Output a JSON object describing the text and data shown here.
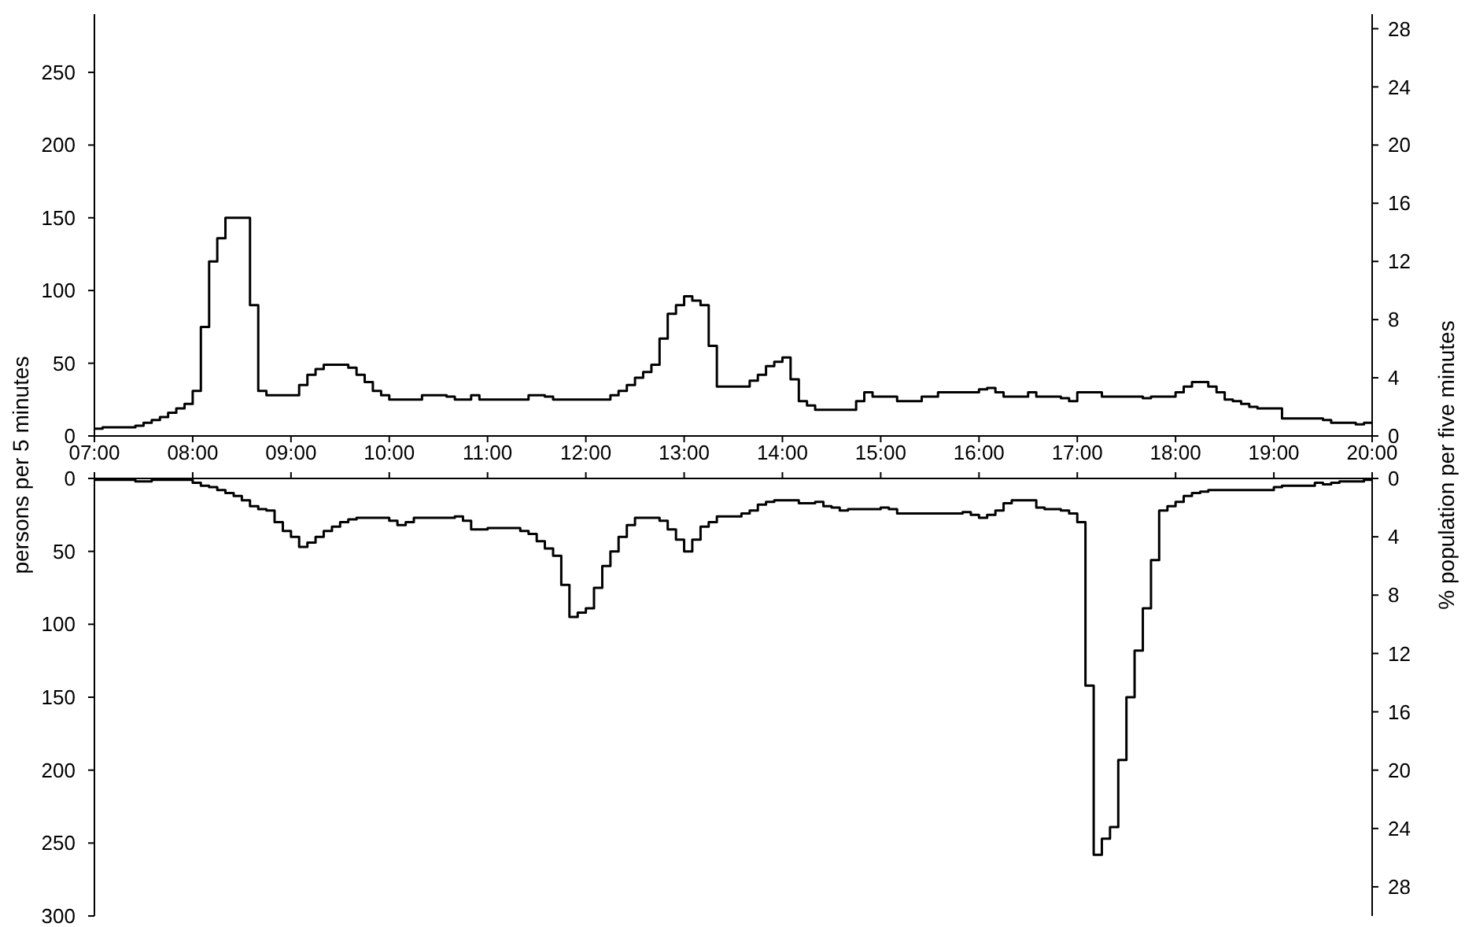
{
  "chart_data": [
    {
      "type": "step",
      "ylabel": "persons per 5 minutes",
      "y2label": "% population per five minutes",
      "xlim": [
        7,
        20
      ],
      "xticks": [
        {
          "value": 7,
          "label": "07:00"
        },
        {
          "value": 8,
          "label": "08:00"
        },
        {
          "value": 9,
          "label": "09:00"
        },
        {
          "value": 10,
          "label": "10:00"
        },
        {
          "value": 11,
          "label": "11:00"
        },
        {
          "value": 12,
          "label": "12:00"
        },
        {
          "value": 13,
          "label": "13:00"
        },
        {
          "value": 14,
          "label": "14:00"
        },
        {
          "value": 15,
          "label": "15:00"
        },
        {
          "value": 16,
          "label": "16:00"
        },
        {
          "value": 17,
          "label": "17:00"
        },
        {
          "value": 18,
          "label": "18:00"
        },
        {
          "value": 19,
          "label": "19:00"
        },
        {
          "value": 20,
          "label": "20:00"
        }
      ],
      "ylim": [
        0,
        290
      ],
      "yticks": [
        0,
        50,
        100,
        150,
        200,
        250
      ],
      "y2lim": [
        0,
        29
      ],
      "y2ticks": [
        0,
        4,
        8,
        12,
        16,
        20,
        24,
        28
      ],
      "series": [
        {
          "color": "#000000",
          "x": [
            7,
            7.083,
            7.417,
            7.5,
            7.583,
            7.667,
            7.75,
            7.833,
            7.917,
            8,
            8.083,
            8.167,
            8.25,
            8.333,
            8.583,
            8.667,
            8.75,
            9.083,
            9.167,
            9.25,
            9.333,
            9.583,
            9.667,
            9.75,
            9.833,
            9.917,
            10,
            10.333,
            10.583,
            10.667,
            10.833,
            10.917,
            11.417,
            11.583,
            11.667,
            12.25,
            12.333,
            12.417,
            12.5,
            12.583,
            12.667,
            12.75,
            12.833,
            12.917,
            13,
            13.083,
            13.167,
            13.25,
            13.333,
            13.667,
            13.75,
            13.833,
            13.917,
            14,
            14.083,
            14.167,
            14.25,
            14.333,
            14.75,
            14.833,
            14.917,
            15.167,
            15.417,
            15.583,
            16,
            16.083,
            16.167,
            16.25,
            16.5,
            16.583,
            16.833,
            16.917,
            17,
            17.25,
            17.667,
            17.75,
            18,
            18.083,
            18.167,
            18.333,
            18.417,
            18.5,
            18.583,
            18.667,
            18.75,
            18.833,
            19.083,
            19.5,
            19.583,
            19.833,
            19.917,
            20
          ],
          "values": [
            5,
            6,
            7,
            9,
            11,
            13,
            16,
            19,
            22,
            31,
            75,
            120,
            136,
            150,
            90,
            31,
            28,
            35,
            42,
            46,
            49,
            47,
            42,
            37,
            31,
            28,
            25,
            28,
            27,
            25,
            28,
            25,
            28,
            27,
            25,
            28,
            31,
            35,
            40,
            44,
            49,
            67,
            84,
            90,
            96,
            93,
            90,
            62,
            34,
            38,
            42,
            48,
            51,
            54,
            39,
            24,
            21,
            18,
            24,
            30,
            27,
            24,
            27,
            30,
            32,
            33,
            30,
            27,
            30,
            27,
            26,
            24,
            30,
            27,
            26,
            27,
            30,
            34,
            37,
            34,
            30,
            25,
            24,
            22,
            20,
            19,
            12,
            11,
            9,
            8,
            9,
            9
          ]
        }
      ]
    },
    {
      "type": "step",
      "tick_labels": "y",
      "xlim": [
        7,
        20
      ],
      "xticks": [
        {
          "value": 7,
          "label": null
        },
        {
          "value": 8,
          "label": null
        },
        {
          "value": 9,
          "label": null
        },
        {
          "value": 10,
          "label": null
        },
        {
          "value": 11,
          "label": null
        },
        {
          "value": 12,
          "label": null
        },
        {
          "value": 13,
          "label": null
        },
        {
          "value": 14,
          "label": null
        },
        {
          "value": 15,
          "label": null
        },
        {
          "value": 16,
          "label": null
        },
        {
          "value": 17,
          "label": null
        },
        {
          "value": 18,
          "label": null
        },
        {
          "value": 19,
          "label": null
        },
        {
          "value": 20,
          "label": null
        }
      ],
      "ylim": [
        300,
        0
      ],
      "yticks": [
        0,
        50,
        100,
        150,
        200,
        250,
        300
      ],
      "y2lim": [
        30,
        0
      ],
      "y2ticks": [
        0,
        4,
        8,
        12,
        16,
        20,
        24,
        28
      ],
      "series": [
        {
          "color": "#000000",
          "x": [
            7,
            7.417,
            7.583,
            8,
            8.083,
            8.167,
            8.25,
            8.333,
            8.417,
            8.5,
            8.583,
            8.667,
            8.75,
            8.833,
            8.917,
            9,
            9.083,
            9.167,
            9.25,
            9.333,
            9.417,
            9.5,
            9.583,
            9.667,
            10,
            10.083,
            10.167,
            10.25,
            10.667,
            10.75,
            10.833,
            11,
            11.333,
            11.417,
            11.5,
            11.583,
            11.667,
            11.75,
            11.833,
            11.917,
            12,
            12.083,
            12.167,
            12.25,
            12.333,
            12.417,
            12.5,
            12.75,
            12.833,
            12.917,
            13,
            13.083,
            13.167,
            13.25,
            13.333,
            13.583,
            13.667,
            13.75,
            13.833,
            13.917,
            14.167,
            14.333,
            14.417,
            14.5,
            14.583,
            14.667,
            15,
            15.083,
            15.167,
            15.833,
            15.917,
            16,
            16.083,
            16.167,
            16.25,
            16.333,
            16.583,
            16.667,
            16.833,
            16.917,
            17,
            17.083,
            17.167,
            17.25,
            17.333,
            17.417,
            17.5,
            17.583,
            17.667,
            17.75,
            17.833,
            17.917,
            18,
            18.083,
            18.167,
            18.25,
            18.333,
            19,
            19.083,
            19.417,
            19.5,
            19.583,
            19.667,
            19.917,
            20
          ],
          "values": [
            1,
            2,
            1,
            3,
            5,
            6,
            8,
            10,
            12,
            15,
            19,
            21,
            22,
            30,
            36,
            40,
            47,
            44,
            40,
            36,
            33,
            30,
            28,
            27,
            29,
            32,
            30,
            27,
            26,
            29,
            35,
            34,
            36,
            38,
            43,
            48,
            53,
            73,
            95,
            92,
            89,
            75,
            60,
            50,
            40,
            32,
            27,
            29,
            35,
            42,
            50,
            42,
            33,
            30,
            26,
            24,
            22,
            18,
            16,
            15,
            17,
            16,
            19,
            20,
            22,
            21,
            20,
            21,
            24,
            23,
            25,
            27,
            25,
            22,
            17,
            15,
            20,
            21,
            22,
            24,
            30,
            142,
            258,
            247,
            239,
            193,
            150,
            118,
            89,
            56,
            22,
            19,
            16,
            12,
            10,
            9,
            8,
            6,
            5,
            3,
            4,
            3,
            2,
            1,
            1
          ]
        }
      ]
    }
  ]
}
